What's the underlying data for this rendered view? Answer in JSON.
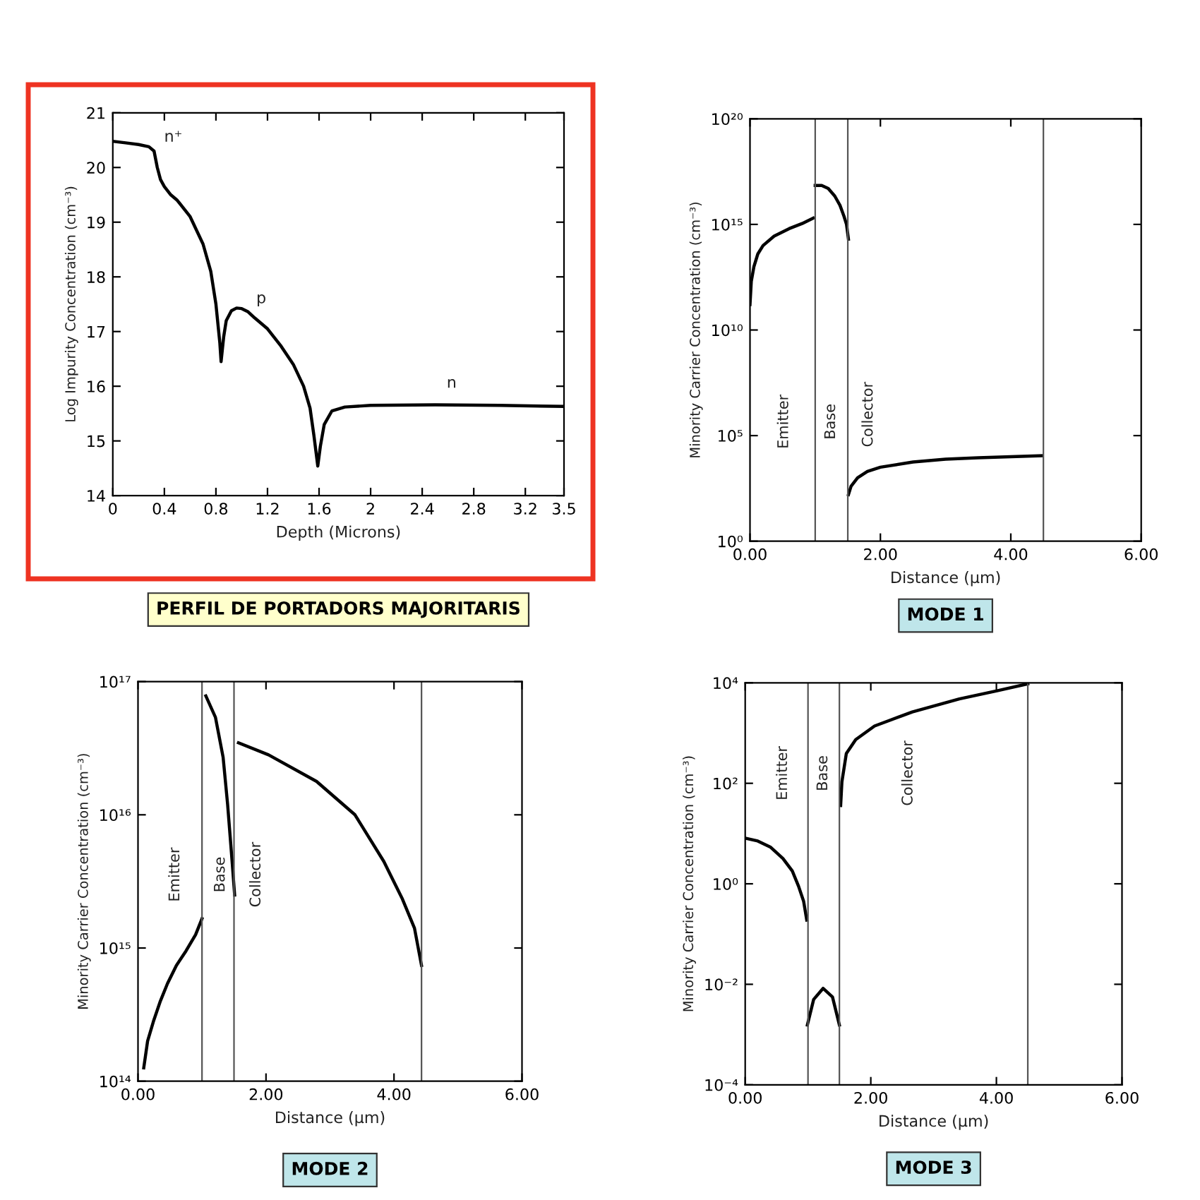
{
  "chart_data": [
    {
      "type": "line",
      "title": "PERFIL DE PORTADORS MAJORITARIS",
      "xlabel": "Depth (Microns)",
      "ylabel": "Log Impurity Concentration (cm⁻³)",
      "xlim": [
        0,
        3.5
      ],
      "xticks": [
        0,
        0.4,
        0.8,
        1.2,
        1.6,
        2,
        2.4,
        2.8,
        3.2,
        3.5
      ],
      "ylim": [
        14,
        21
      ],
      "yticks": [
        14,
        15,
        16,
        17,
        18,
        19,
        20,
        21
      ],
      "grid": false,
      "legend": false,
      "series": [
        {
          "color": "#000000",
          "x": [
            0,
            0.1,
            0.2,
            0.28,
            0.32,
            0.345,
            0.37,
            0.4,
            0.45,
            0.5,
            0.6,
            0.7,
            0.76,
            0.8,
            0.83,
            0.84,
            0.86,
            0.88,
            0.92,
            0.96,
            1.0,
            1.05,
            1.1,
            1.2,
            1.3,
            1.4,
            1.48,
            1.53,
            1.56,
            1.59,
            1.61,
            1.64,
            1.7,
            1.8,
            2.0,
            2.5,
            3.0,
            3.5
          ],
          "values": [
            20.48,
            20.45,
            20.42,
            20.38,
            20.3,
            20.0,
            19.78,
            19.65,
            19.5,
            19.4,
            19.1,
            18.6,
            18.1,
            17.5,
            16.8,
            16.45,
            16.9,
            17.2,
            17.38,
            17.43,
            17.42,
            17.36,
            17.25,
            17.05,
            16.75,
            16.4,
            16.0,
            15.6,
            15.1,
            14.54,
            14.9,
            15.3,
            15.55,
            15.62,
            15.65,
            15.66,
            15.65,
            15.63
          ]
        }
      ],
      "annotations": [
        "n⁺",
        "p",
        "n"
      ]
    },
    {
      "type": "line",
      "title": "MODE 1",
      "xlabel": "Distance (μm)",
      "ylabel": "Minority Carrier Concentration (cm⁻³)",
      "log": "y",
      "xlim": [
        0,
        6
      ],
      "xticks": [
        {
          "value": 0,
          "label": "0.00"
        },
        {
          "value": 2,
          "label": "2.00"
        },
        {
          "value": 4,
          "label": "4.00"
        },
        {
          "value": 6,
          "label": "6.00"
        }
      ],
      "ylim": [
        1,
        1e+20
      ],
      "yticks": [
        {
          "value": 1,
          "label": "10⁰"
        },
        {
          "value": 100000.0,
          "label": "10⁵"
        },
        {
          "value": 10000000000.0,
          "label": "10¹⁰"
        },
        {
          "value": 1000000000000000.0,
          "label": "10¹⁵"
        },
        {
          "value": 1e+20,
          "label": "10²⁰"
        }
      ],
      "grid": false,
      "legend": false,
      "ref_lines": [
        {
          "axis": "x",
          "value": 1.0,
          "color": "#555555"
        },
        {
          "axis": "x",
          "value": 1.5,
          "color": "#555555"
        },
        {
          "axis": "x",
          "value": 4.5,
          "color": "#555555"
        }
      ],
      "series": [
        {
          "color": "#000000",
          "x": [
            0.0,
            0.02,
            0.06,
            0.12,
            0.2,
            0.37,
            0.6,
            0.8,
            0.97
          ],
          "values": [
            160000000000.0,
            2000000000000.0,
            10000000000000.0,
            40000000000000.0,
            100000000000000.0,
            280000000000000.0,
            630000000000000.0,
            1100000000000000.0,
            2000000000000000.0
          ]
        },
        {
          "color": "#000000",
          "x": [
            1.0,
            1.1,
            1.2,
            1.3,
            1.38,
            1.44,
            1.48,
            1.51
          ],
          "values": [
            7e+16,
            7e+16,
            5e+16,
            2.2e+16,
            8000000000000000.0,
            2500000000000000.0,
            1000000000000000.0,
            200000000000000.0
          ]
        },
        {
          "color": "#000000",
          "x": [
            1.51,
            1.55,
            1.65,
            1.8,
            2.0,
            2.5,
            3.0,
            3.5,
            4.0,
            4.48
          ],
          "values": [
            160,
            400,
            1000,
            2000,
            3200,
            5600,
            7600,
            8900,
            10000,
            11200
          ]
        }
      ],
      "annotations": [
        "Emitter",
        "Base",
        "Collector"
      ]
    },
    {
      "type": "line",
      "title": "MODE 2",
      "xlabel": "Distance (μm)",
      "ylabel": "Minority Carrier Concentration (cm⁻³)",
      "log": "y",
      "xlim": [
        0,
        6
      ],
      "xticks": [
        {
          "value": 0,
          "label": "0.00"
        },
        {
          "value": 2,
          "label": "2.00"
        },
        {
          "value": 4,
          "label": "4.00"
        },
        {
          "value": 6,
          "label": "6.00"
        }
      ],
      "ylim": [
        100000000000000.0,
        1e+17
      ],
      "yticks": [
        {
          "value": 100000000000000.0,
          "label": "10¹⁴"
        },
        {
          "value": 1000000000000000.0,
          "label": "10¹⁵"
        },
        {
          "value": 1e+16,
          "label": "10¹⁶"
        },
        {
          "value": 1e+17,
          "label": "10¹⁷"
        }
      ],
      "grid": false,
      "legend": false,
      "ref_lines": [
        {
          "axis": "x",
          "value": 1.0,
          "color": "#555555"
        },
        {
          "axis": "x",
          "value": 1.5,
          "color": "#555555"
        },
        {
          "axis": "x",
          "value": 4.43,
          "color": "#555555"
        }
      ],
      "series": [
        {
          "color": "#000000",
          "x": [
            0.09,
            0.15,
            0.24,
            0.35,
            0.46,
            0.6,
            0.75,
            0.9,
            1.0
          ],
          "values": [
            126000000000000.0,
            200000000000000.0,
            280000000000000.0,
            400000000000000.0,
            540000000000000.0,
            740000000000000.0,
            950000000000000.0,
            1260000000000000.0,
            1660000000000000.0
          ]
        },
        {
          "color": "#000000",
          "x": [
            1.06,
            1.21,
            1.33,
            1.4,
            1.47,
            1.51
          ],
          "values": [
            7.8e+16,
            5.4e+16,
            2.7e+16,
            1.2e+16,
            4500000000000000.0,
            2500000000000000.0
          ]
        },
        {
          "color": "#000000",
          "x": [
            1.57,
            2.04,
            2.79,
            3.39,
            3.84,
            4.13,
            4.32,
            4.43
          ],
          "values": [
            3.47e+16,
            2.82e+16,
            1.78e+16,
            1e+16,
            4470000000000000.0,
            2340000000000000.0,
            1410000000000000.0,
            740000000000000.0
          ]
        }
      ],
      "annotations": [
        "Emitter",
        "Base",
        "Collector"
      ]
    },
    {
      "type": "line",
      "title": "MODE 3",
      "xlabel": "Distance (μm)",
      "ylabel": "Minority Carrier Concentration (cm⁻³)",
      "log": "y",
      "xlim": [
        0,
        6
      ],
      "xticks": [
        {
          "value": 0,
          "label": "0.00"
        },
        {
          "value": 2,
          "label": "2.00"
        },
        {
          "value": 4,
          "label": "4.00"
        },
        {
          "value": 6,
          "label": "6.00"
        }
      ],
      "ylim": [
        0.0001,
        10000.0
      ],
      "yticks": [
        {
          "value": 0.0001,
          "label": "10⁻⁴"
        },
        {
          "value": 0.01,
          "label": "10⁻²"
        },
        {
          "value": 1,
          "label": "10⁰"
        },
        {
          "value": 100,
          "label": "10²"
        },
        {
          "value": 10000.0,
          "label": "10⁴"
        }
      ],
      "grid": false,
      "legend": false,
      "ref_lines": [
        {
          "axis": "x",
          "value": 1.0,
          "color": "#555555"
        },
        {
          "axis": "x",
          "value": 1.5,
          "color": "#555555"
        },
        {
          "axis": "x",
          "value": 4.5,
          "color": "#555555"
        }
      ],
      "series": [
        {
          "color": "#000000",
          "x": [
            0,
            0.2,
            0.4,
            0.6,
            0.75,
            0.85,
            0.93,
            0.98
          ],
          "values": [
            8.1,
            7.1,
            5.4,
            3.2,
            1.8,
            0.89,
            0.45,
            0.19
          ]
        },
        {
          "color": "#000000",
          "x": [
            0.99,
            1.09,
            1.24,
            1.39,
            1.5
          ],
          "values": [
            0.00155,
            0.005,
            0.0083,
            0.0056,
            0.00155
          ]
        },
        {
          "color": "#000000",
          "x": [
            1.52,
            1.54,
            1.61,
            1.76,
            2.06,
            2.66,
            3.41,
            4.01,
            4.5
          ],
          "values": [
            36,
            107,
            390,
            740,
            1380,
            2630,
            4790,
            6920,
            9550
          ]
        }
      ],
      "annotations": [
        "Emitter",
        "Base",
        "Collector"
      ]
    }
  ]
}
